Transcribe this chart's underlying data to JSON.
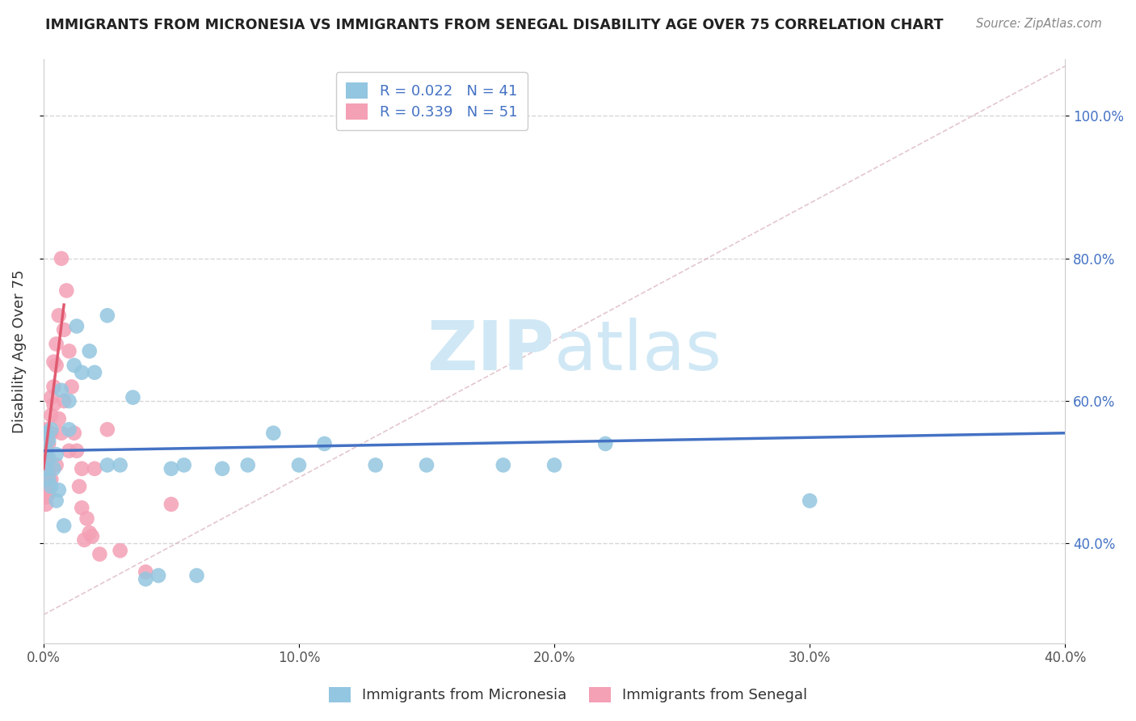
{
  "title": "IMMIGRANTS FROM MICRONESIA VS IMMIGRANTS FROM SENEGAL DISABILITY AGE OVER 75 CORRELATION CHART",
  "source": "Source: ZipAtlas.com",
  "ylabel": "Disability Age Over 75",
  "xlim": [
    0.0,
    0.4
  ],
  "ylim": [
    0.26,
    1.08
  ],
  "xticks": [
    0.0,
    0.1,
    0.2,
    0.3,
    0.4
  ],
  "xtick_labels": [
    "0.0%",
    "10.0%",
    "20.0%",
    "30.0%",
    "40.0%"
  ],
  "yticks": [
    0.4,
    0.6,
    0.8,
    1.0
  ],
  "ytick_labels": [
    "40.0%",
    "60.0%",
    "80.0%",
    "100.0%"
  ],
  "R_micronesia": 0.022,
  "N_micronesia": 41,
  "R_senegal": 0.339,
  "N_senegal": 51,
  "color_micronesia": "#93c6e0",
  "color_senegal": "#f4a0b5",
  "line_color_micronesia": "#4472c4",
  "line_color_senegal": "#e05a70",
  "watermark_zip": "ZIP",
  "watermark_atlas": "atlas",
  "watermark_color": "#d0e8f5",
  "micronesia_x": [
    0.001,
    0.001,
    0.001,
    0.002,
    0.002,
    0.002,
    0.003,
    0.003,
    0.004,
    0.005,
    0.005,
    0.006,
    0.007,
    0.008,
    0.01,
    0.01,
    0.012,
    0.013,
    0.015,
    0.018,
    0.02,
    0.025,
    0.025,
    0.03,
    0.035,
    0.04,
    0.045,
    0.05,
    0.055,
    0.06,
    0.07,
    0.08,
    0.09,
    0.1,
    0.11,
    0.13,
    0.15,
    0.18,
    0.2,
    0.22,
    0.3
  ],
  "micronesia_y": [
    0.555,
    0.53,
    0.505,
    0.545,
    0.52,
    0.49,
    0.56,
    0.48,
    0.505,
    0.525,
    0.46,
    0.475,
    0.615,
    0.425,
    0.56,
    0.6,
    0.65,
    0.705,
    0.64,
    0.67,
    0.64,
    0.51,
    0.72,
    0.51,
    0.605,
    0.35,
    0.355,
    0.505,
    0.51,
    0.355,
    0.505,
    0.51,
    0.555,
    0.51,
    0.54,
    0.51,
    0.51,
    0.51,
    0.51,
    0.54,
    0.46
  ],
  "senegal_x": [
    0.001,
    0.001,
    0.001,
    0.001,
    0.001,
    0.001,
    0.001,
    0.001,
    0.001,
    0.001,
    0.002,
    0.002,
    0.002,
    0.002,
    0.002,
    0.002,
    0.003,
    0.003,
    0.003,
    0.003,
    0.004,
    0.004,
    0.004,
    0.005,
    0.005,
    0.005,
    0.006,
    0.006,
    0.007,
    0.007,
    0.008,
    0.008,
    0.009,
    0.01,
    0.01,
    0.011,
    0.012,
    0.013,
    0.014,
    0.015,
    0.015,
    0.016,
    0.017,
    0.018,
    0.019,
    0.02,
    0.022,
    0.025,
    0.03,
    0.04,
    0.05
  ],
  "senegal_y": [
    0.56,
    0.55,
    0.54,
    0.53,
    0.515,
    0.505,
    0.495,
    0.48,
    0.465,
    0.455,
    0.555,
    0.54,
    0.52,
    0.5,
    0.49,
    0.47,
    0.605,
    0.58,
    0.555,
    0.49,
    0.655,
    0.62,
    0.595,
    0.68,
    0.65,
    0.51,
    0.72,
    0.575,
    0.8,
    0.555,
    0.7,
    0.6,
    0.755,
    0.67,
    0.53,
    0.62,
    0.555,
    0.53,
    0.48,
    0.505,
    0.45,
    0.405,
    0.435,
    0.415,
    0.41,
    0.505,
    0.385,
    0.56,
    0.39,
    0.36,
    0.455
  ],
  "diag_line_x": [
    0.0,
    0.4
  ],
  "diag_line_y": [
    0.3,
    1.07
  ]
}
